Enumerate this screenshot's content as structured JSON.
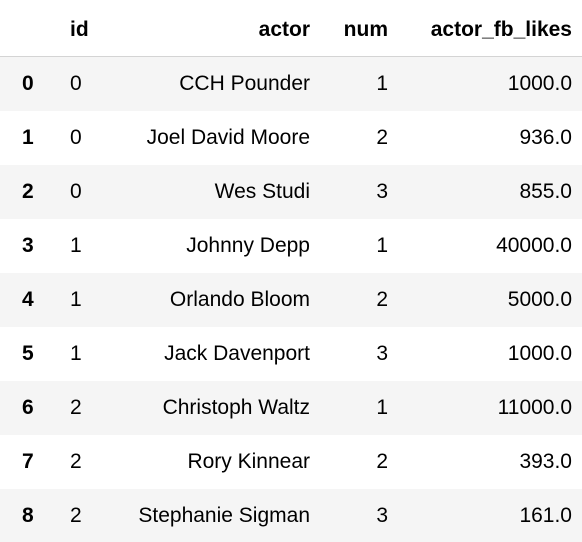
{
  "table": {
    "columns": {
      "index": "",
      "id": "id",
      "actor": "actor",
      "num": "num",
      "actor_fb_likes": "actor_fb_likes"
    },
    "rows": [
      {
        "index": "0",
        "id": "0",
        "actor": "CCH Pounder",
        "num": "1",
        "actor_fb_likes": "1000.0"
      },
      {
        "index": "1",
        "id": "0",
        "actor": "Joel David Moore",
        "num": "2",
        "actor_fb_likes": "936.0"
      },
      {
        "index": "2",
        "id": "0",
        "actor": "Wes Studi",
        "num": "3",
        "actor_fb_likes": "855.0"
      },
      {
        "index": "3",
        "id": "1",
        "actor": "Johnny Depp",
        "num": "1",
        "actor_fb_likes": "40000.0"
      },
      {
        "index": "4",
        "id": "1",
        "actor": "Orlando Bloom",
        "num": "2",
        "actor_fb_likes": "5000.0"
      },
      {
        "index": "5",
        "id": "1",
        "actor": "Jack Davenport",
        "num": "3",
        "actor_fb_likes": "1000.0"
      },
      {
        "index": "6",
        "id": "2",
        "actor": "Christoph Waltz",
        "num": "1",
        "actor_fb_likes": "11000.0"
      },
      {
        "index": "7",
        "id": "2",
        "actor": "Rory Kinnear",
        "num": "2",
        "actor_fb_likes": "393.0"
      },
      {
        "index": "8",
        "id": "2",
        "actor": "Stephanie Sigman",
        "num": "3",
        "actor_fb_likes": "161.0"
      }
    ]
  },
  "colors": {
    "stripe": "#f5f5f5",
    "background": "#ffffff",
    "header_border": "#d4d4d4",
    "text": "#000000"
  }
}
